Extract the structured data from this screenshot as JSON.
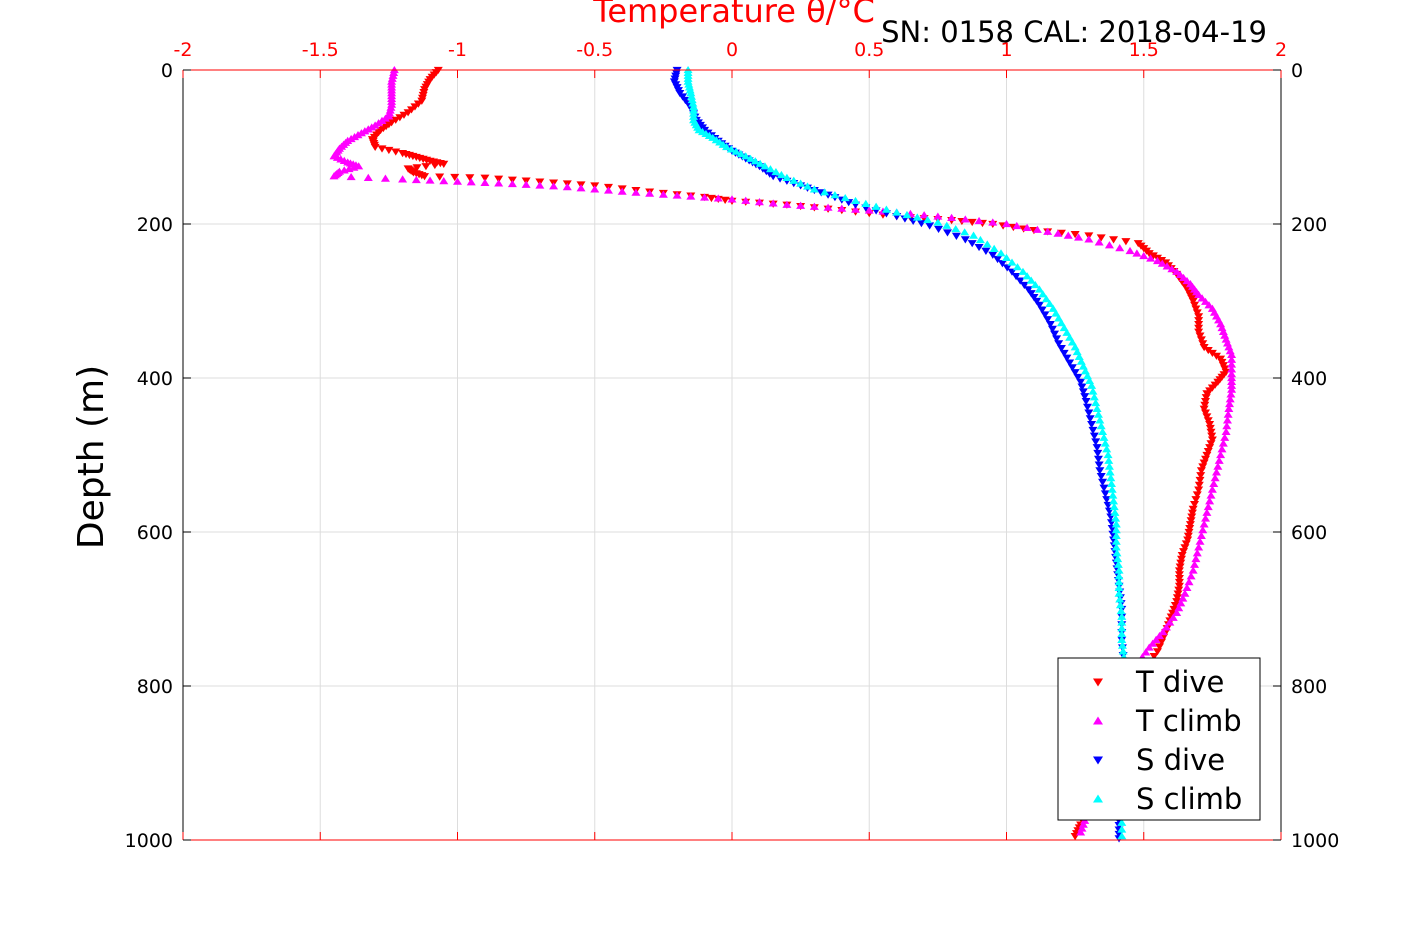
{
  "chart_data": {
    "type": "scatter",
    "title": "Temperature θ/°C",
    "annotation": "SN: 0158  CAL: 2018-04-19",
    "xlabel": "Temperature θ/°C",
    "ylabel": "Depth (m)",
    "xlim": [
      -2,
      2
    ],
    "ylim": [
      0,
      1000
    ],
    "y_reversed": true,
    "grid": true,
    "legend_position": "bottom-right",
    "x_ticks": [
      "-2",
      "-1.5",
      "-1",
      "-0.5",
      "0",
      "0.5",
      "1",
      "1.5",
      "2"
    ],
    "y_ticks": [
      "0",
      "200",
      "400",
      "600",
      "800",
      "1000"
    ],
    "colors": {
      "axis_top": "#ff0000",
      "axis_other": "#000000",
      "grid": "#dddddd"
    },
    "series": [
      {
        "name": "T dive",
        "color": "#ff0000",
        "marker": "triangle-down",
        "points": [
          [
            -1.07,
            0
          ],
          [
            -1.1,
            12
          ],
          [
            -1.12,
            25
          ],
          [
            -1.13,
            40
          ],
          [
            -1.18,
            55
          ],
          [
            -1.24,
            68
          ],
          [
            -1.28,
            78
          ],
          [
            -1.31,
            90
          ],
          [
            -1.3,
            100
          ],
          [
            -1.2,
            108
          ],
          [
            -1.15,
            113
          ],
          [
            -1.1,
            118
          ],
          [
            -1.05,
            122
          ],
          [
            -1.18,
            128
          ],
          [
            -1.16,
            133
          ],
          [
            -1.12,
            138
          ],
          [
            -0.9,
            140
          ],
          [
            -0.7,
            145
          ],
          [
            -0.5,
            150
          ],
          [
            -0.3,
            158
          ],
          [
            -0.1,
            165
          ],
          [
            0.0,
            170
          ],
          [
            0.2,
            175
          ],
          [
            0.4,
            182
          ],
          [
            0.6,
            190
          ],
          [
            0.8,
            195
          ],
          [
            0.95,
            200
          ],
          [
            1.1,
            208
          ],
          [
            1.3,
            215
          ],
          [
            1.48,
            225
          ],
          [
            1.52,
            238
          ],
          [
            1.58,
            250
          ],
          [
            1.62,
            265
          ],
          [
            1.66,
            285
          ],
          [
            1.68,
            300
          ],
          [
            1.7,
            320
          ],
          [
            1.7,
            340
          ],
          [
            1.72,
            360
          ],
          [
            1.78,
            375
          ],
          [
            1.8,
            392
          ],
          [
            1.77,
            405
          ],
          [
            1.73,
            420
          ],
          [
            1.72,
            440
          ],
          [
            1.74,
            460
          ],
          [
            1.75,
            480
          ],
          [
            1.73,
            500
          ],
          [
            1.71,
            520
          ],
          [
            1.7,
            545
          ],
          [
            1.68,
            570
          ],
          [
            1.67,
            590
          ],
          [
            1.66,
            610
          ],
          [
            1.64,
            630
          ],
          [
            1.63,
            650
          ],
          [
            1.63,
            670
          ],
          [
            1.62,
            690
          ],
          [
            1.6,
            710
          ],
          [
            1.58,
            730
          ],
          [
            1.55,
            755
          ],
          [
            1.5,
            780
          ],
          [
            1.45,
            810
          ],
          [
            1.4,
            840
          ],
          [
            1.35,
            870
          ],
          [
            1.3,
            910
          ],
          [
            1.28,
            950
          ],
          [
            1.27,
            980
          ],
          [
            1.25,
            995
          ]
        ]
      },
      {
        "name": "T climb",
        "color": "#ff00ff",
        "marker": "triangle-up",
        "points": [
          [
            -1.23,
            0
          ],
          [
            -1.24,
            15
          ],
          [
            -1.24,
            30
          ],
          [
            -1.24,
            45
          ],
          [
            -1.25,
            60
          ],
          [
            -1.3,
            72
          ],
          [
            -1.35,
            82
          ],
          [
            -1.4,
            92
          ],
          [
            -1.43,
            102
          ],
          [
            -1.45,
            112
          ],
          [
            -1.4,
            120
          ],
          [
            -1.36,
            125
          ],
          [
            -1.43,
            132
          ],
          [
            -1.45,
            138
          ],
          [
            -1.2,
            142
          ],
          [
            -1.0,
            145
          ],
          [
            -0.8,
            148
          ],
          [
            -0.6,
            152
          ],
          [
            -0.4,
            158
          ],
          [
            -0.2,
            163
          ],
          [
            0.0,
            168
          ],
          [
            0.2,
            175
          ],
          [
            0.4,
            180
          ],
          [
            0.6,
            185
          ],
          [
            0.8,
            192
          ],
          [
            1.0,
            200
          ],
          [
            1.15,
            210
          ],
          [
            1.3,
            220
          ],
          [
            1.45,
            235
          ],
          [
            1.55,
            248
          ],
          [
            1.62,
            262
          ],
          [
            1.67,
            278
          ],
          [
            1.7,
            292
          ],
          [
            1.75,
            310
          ],
          [
            1.78,
            330
          ],
          [
            1.8,
            350
          ],
          [
            1.82,
            370
          ],
          [
            1.82,
            395
          ],
          [
            1.82,
            415
          ],
          [
            1.81,
            440
          ],
          [
            1.8,
            470
          ],
          [
            1.78,
            500
          ],
          [
            1.76,
            530
          ],
          [
            1.74,
            560
          ],
          [
            1.72,
            590
          ],
          [
            1.7,
            620
          ],
          [
            1.68,
            650
          ],
          [
            1.65,
            680
          ],
          [
            1.62,
            705
          ],
          [
            1.57,
            730
          ],
          [
            1.52,
            750
          ],
          [
            1.47,
            775
          ],
          [
            1.43,
            800
          ],
          [
            1.4,
            830
          ],
          [
            1.37,
            860
          ],
          [
            1.33,
            900
          ],
          [
            1.31,
            940
          ],
          [
            1.29,
            970
          ],
          [
            1.27,
            990
          ]
        ]
      },
      {
        "name": "S dive",
        "color": "#0000ff",
        "marker": "triangle-down",
        "points": [
          [
            -0.2,
            0
          ],
          [
            -0.21,
            15
          ],
          [
            -0.19,
            30
          ],
          [
            -0.15,
            48
          ],
          [
            -0.13,
            65
          ],
          [
            -0.1,
            78
          ],
          [
            -0.05,
            92
          ],
          [
            0.0,
            105
          ],
          [
            0.05,
            115
          ],
          [
            0.1,
            125
          ],
          [
            0.15,
            138
          ],
          [
            0.25,
            150
          ],
          [
            0.35,
            162
          ],
          [
            0.45,
            175
          ],
          [
            0.6,
            190
          ],
          [
            0.72,
            202
          ],
          [
            0.85,
            220
          ],
          [
            0.95,
            240
          ],
          [
            1.02,
            262
          ],
          [
            1.08,
            285
          ],
          [
            1.12,
            305
          ],
          [
            1.16,
            330
          ],
          [
            1.19,
            355
          ],
          [
            1.23,
            380
          ],
          [
            1.27,
            405
          ],
          [
            1.29,
            430
          ],
          [
            1.31,
            460
          ],
          [
            1.33,
            490
          ],
          [
            1.34,
            520
          ],
          [
            1.36,
            550
          ],
          [
            1.38,
            580
          ],
          [
            1.39,
            610
          ],
          [
            1.4,
            640
          ],
          [
            1.41,
            670
          ],
          [
            1.42,
            700
          ],
          [
            1.42,
            740
          ],
          [
            1.43,
            780
          ],
          [
            1.43,
            820
          ],
          [
            1.43,
            860
          ],
          [
            1.42,
            900
          ],
          [
            1.42,
            940
          ],
          [
            1.41,
            975
          ],
          [
            1.41,
            998
          ]
        ]
      },
      {
        "name": "S climb",
        "color": "#00ffff",
        "marker": "triangle-up",
        "points": [
          [
            -0.16,
            0
          ],
          [
            -0.16,
            15
          ],
          [
            -0.15,
            30
          ],
          [
            -0.14,
            48
          ],
          [
            -0.14,
            65
          ],
          [
            -0.12,
            78
          ],
          [
            -0.07,
            88
          ],
          [
            -0.02,
            100
          ],
          [
            0.05,
            112
          ],
          [
            0.12,
            125
          ],
          [
            0.2,
            140
          ],
          [
            0.3,
            155
          ],
          [
            0.45,
            170
          ],
          [
            0.6,
            185
          ],
          [
            0.75,
            198
          ],
          [
            0.88,
            215
          ],
          [
            0.98,
            238
          ],
          [
            1.06,
            262
          ],
          [
            1.12,
            285
          ],
          [
            1.17,
            310
          ],
          [
            1.21,
            335
          ],
          [
            1.25,
            360
          ],
          [
            1.28,
            385
          ],
          [
            1.31,
            410
          ],
          [
            1.33,
            440
          ],
          [
            1.35,
            470
          ],
          [
            1.37,
            500
          ],
          [
            1.38,
            530
          ],
          [
            1.39,
            560
          ],
          [
            1.4,
            590
          ],
          [
            1.4,
            620
          ],
          [
            1.41,
            650
          ],
          [
            1.41,
            680
          ],
          [
            1.42,
            710
          ],
          [
            1.42,
            740
          ],
          [
            1.43,
            770
          ],
          [
            1.43,
            800
          ],
          [
            1.43,
            840
          ],
          [
            1.43,
            880
          ],
          [
            1.42,
            920
          ],
          [
            1.42,
            960
          ],
          [
            1.42,
            995
          ]
        ]
      }
    ]
  }
}
